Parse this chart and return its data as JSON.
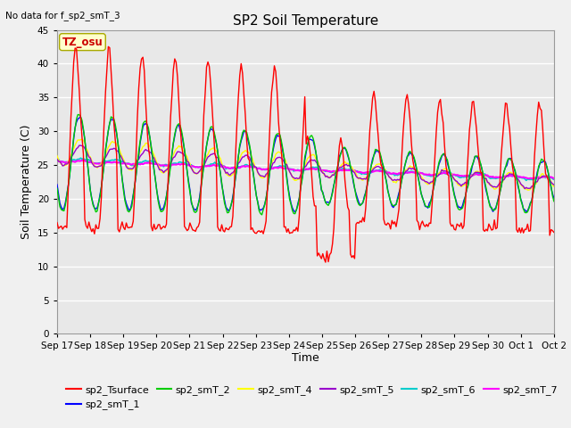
{
  "title": "SP2 Soil Temperature",
  "ylabel": "Soil Temperature (C)",
  "xlabel": "Time",
  "note": "No data for f_sp2_smT_3",
  "tz_label": "TZ_osu",
  "ylim": [
    0,
    45
  ],
  "yticks": [
    0,
    5,
    10,
    15,
    20,
    25,
    30,
    35,
    40,
    45
  ],
  "x_tick_labels": [
    "Sep 17",
    "Sep 18",
    "Sep 19",
    "Sep 20",
    "Sep 21",
    "Sep 22",
    "Sep 23",
    "Sep 24",
    "Sep 25",
    "Sep 26",
    "Sep 27",
    "Sep 28",
    "Sep 29",
    "Sep 30",
    "Oct 1",
    "Oct 2"
  ],
  "series": {
    "sp2_Tsurface": {
      "color": "#FF0000",
      "lw": 1.0
    },
    "sp2_smT_1": {
      "color": "#0000FF",
      "lw": 1.0
    },
    "sp2_smT_2": {
      "color": "#00CC00",
      "lw": 1.0
    },
    "sp2_smT_4": {
      "color": "#FFFF00",
      "lw": 1.0
    },
    "sp2_smT_5": {
      "color": "#9900CC",
      "lw": 1.0
    },
    "sp2_smT_6": {
      "color": "#00CCCC",
      "lw": 1.2
    },
    "sp2_smT_7": {
      "color": "#FF00FF",
      "lw": 1.5
    }
  },
  "bg_color": "#E8E8E8",
  "fig_bg": "#F0F0F0",
  "grid_color": "#FFFFFF",
  "title_fontsize": 11,
  "axis_fontsize": 9,
  "legend_fontsize": 8,
  "tick_fontsize": 7.5
}
